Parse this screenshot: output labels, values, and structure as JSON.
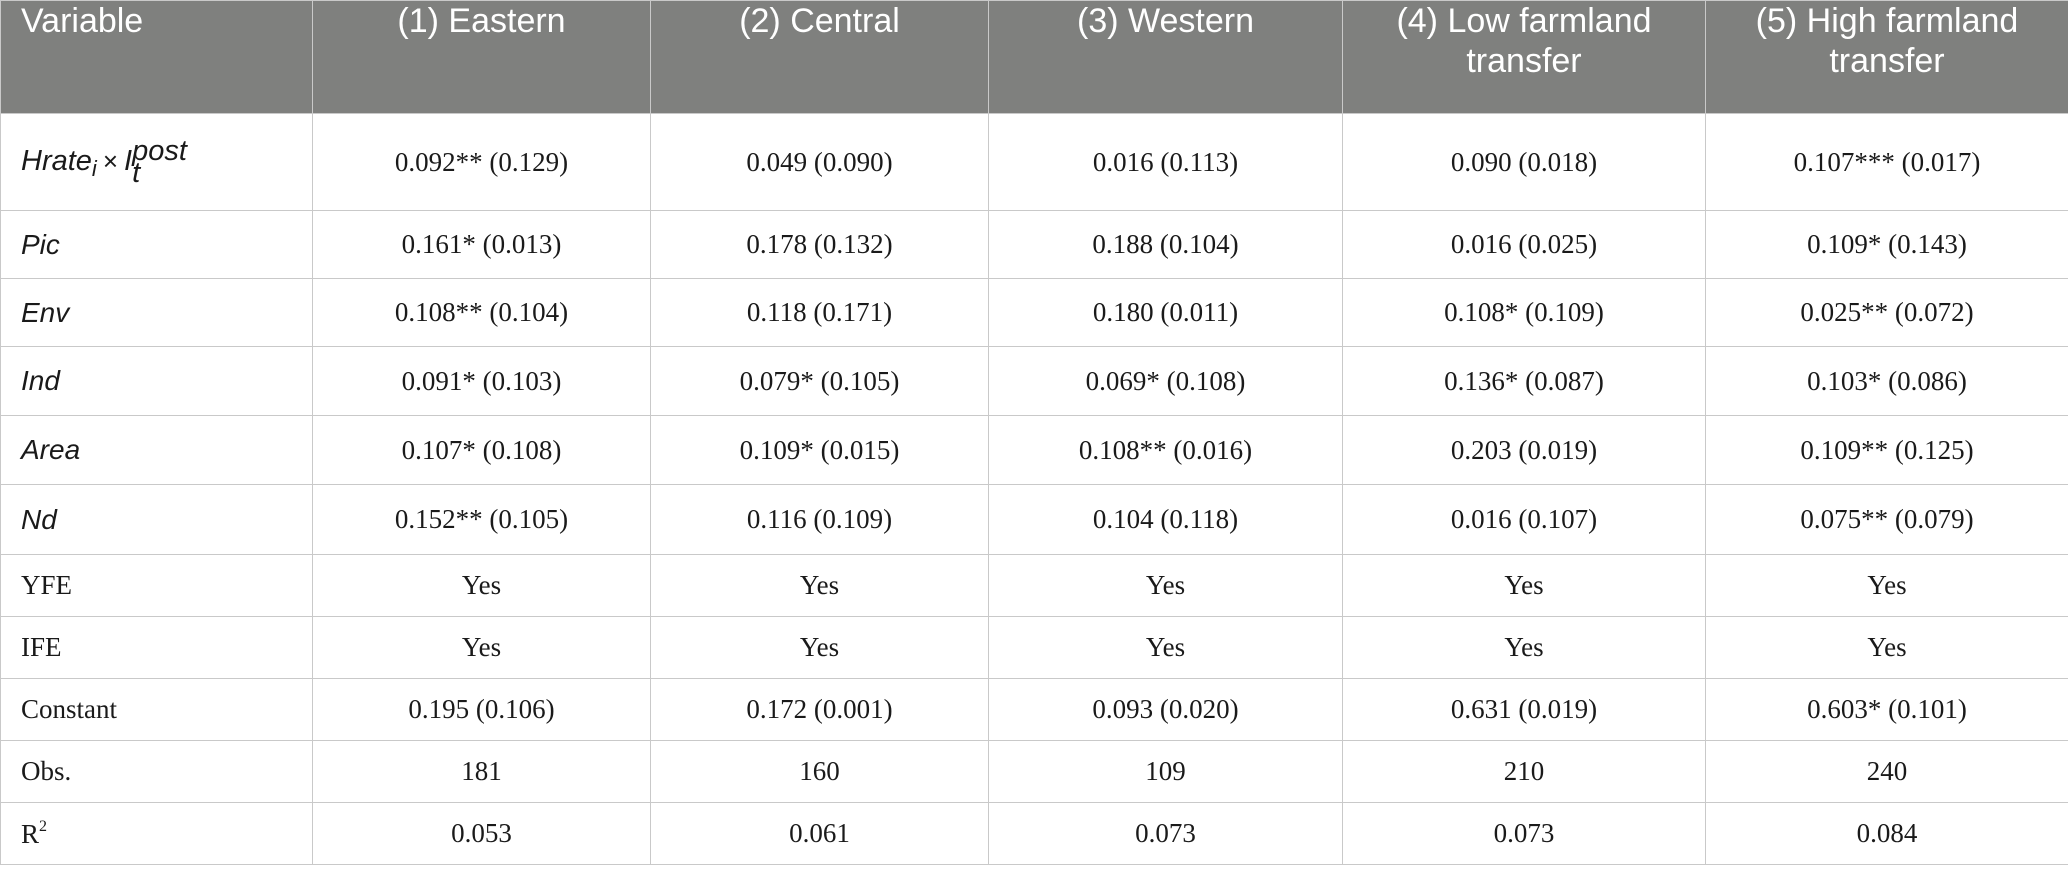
{
  "table": {
    "headers": [
      "Variable",
      "(1) Eastern",
      "(2) Central",
      "(3) Western",
      "(4) Low farmland transfer",
      "(5) High farmland transfer"
    ],
    "interaction_term": {
      "base": "Hrate",
      "base_sub": "i",
      "times": "×",
      "factor": "I",
      "factor_sup": "post",
      "factor_sub": "t"
    },
    "rows": [
      {
        "label": "",
        "cells": [
          "0.092** (0.129)",
          "0.049 (0.090)",
          "0.016 (0.113)",
          "0.090 (0.018)",
          "0.107*** (0.017)"
        ]
      },
      {
        "label": "Pic",
        "cells": [
          "0.161* (0.013)",
          "0.178 (0.132)",
          "0.188 (0.104)",
          "0.016 (0.025)",
          "0.109* (0.143)"
        ]
      },
      {
        "label": "Env",
        "cells": [
          "0.108** (0.104)",
          "0.118 (0.171)",
          "0.180 (0.011)",
          "0.108* (0.109)",
          "0.025** (0.072)"
        ]
      },
      {
        "label": "Ind",
        "cells": [
          "0.091* (0.103)",
          "0.079* (0.105)",
          "0.069* (0.108)",
          "0.136* (0.087)",
          "0.103* (0.086)"
        ]
      },
      {
        "label": "Area",
        "cells": [
          "0.107* (0.108)",
          "0.109* (0.015)",
          "0.108** (0.016)",
          "0.203 (0.019)",
          "0.109** (0.125)"
        ]
      },
      {
        "label": "Nd",
        "cells": [
          "0.152** (0.105)",
          "0.116 (0.109)",
          "0.104 (0.118)",
          "0.016 (0.107)",
          "0.075** (0.079)"
        ]
      },
      {
        "label": "YFE",
        "cells": [
          "Yes",
          "Yes",
          "Yes",
          "Yes",
          "Yes"
        ]
      },
      {
        "label": "IFE",
        "cells": [
          "Yes",
          "Yes",
          "Yes",
          "Yes",
          "Yes"
        ]
      },
      {
        "label": "Constant",
        "cells": [
          "0.195 (0.106)",
          "0.172 (0.001)",
          "0.093 (0.020)",
          "0.631 (0.019)",
          "0.603* (0.101)"
        ]
      },
      {
        "label": "Obs.",
        "cells": [
          "181",
          "160",
          "109",
          "210",
          "240"
        ]
      },
      {
        "label": "R",
        "label_sup": "2",
        "cells": [
          "0.053",
          "0.061",
          "0.073",
          "0.073",
          "0.084"
        ]
      }
    ]
  }
}
